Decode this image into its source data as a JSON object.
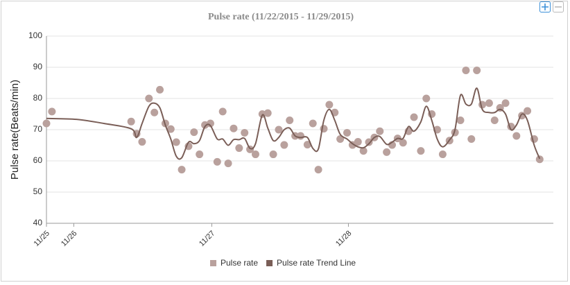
{
  "chart_data": {
    "type": "scatter",
    "title": "Pulse rate (11/22/2015 - 11/29/2015)",
    "y_label": "Pulse rate(Beats/min)",
    "xlim": [
      25.79,
      29.5
    ],
    "xticks": [
      {
        "value": 25.79,
        "label": "11/25"
      },
      {
        "value": 25.99,
        "label": "11/26"
      },
      {
        "value": 27,
        "label": "11/27"
      },
      {
        "value": 28,
        "label": "11/28"
      }
    ],
    "ylim": [
      40,
      100
    ],
    "yticks": [
      40,
      50,
      60,
      70,
      80,
      90,
      100
    ],
    "grid": true,
    "legend": "bottom",
    "series": [
      {
        "name": "Pulse rate",
        "type": "scatter",
        "color": "#b9a19d",
        "x": [
          25.79,
          25.83,
          26.41,
          26.45,
          26.49,
          26.54,
          26.58,
          26.62,
          26.66,
          26.7,
          26.74,
          26.78,
          26.83,
          26.87,
          26.91,
          26.95,
          26.99,
          27.04,
          27.08,
          27.12,
          27.16,
          27.2,
          27.24,
          27.28,
          27.32,
          27.37,
          27.41,
          27.45,
          27.49,
          27.53,
          27.57,
          27.61,
          27.65,
          27.7,
          27.74,
          27.78,
          27.82,
          27.86,
          27.9,
          27.94,
          27.99,
          28.03,
          28.07,
          28.11,
          28.15,
          28.19,
          28.23,
          28.28,
          28.32,
          28.36,
          28.4,
          28.44,
          28.48,
          28.53,
          28.57,
          28.61,
          28.65,
          28.69,
          28.74,
          28.78,
          28.82,
          28.86,
          28.9,
          28.94,
          28.98,
          29.03,
          29.07,
          29.11,
          29.15,
          29.19,
          29.23,
          29.27,
          29.31,
          29.36,
          29.4
        ],
        "values": [
          72,
          75.8,
          72.6,
          68.7,
          66.1,
          80,
          75.5,
          82.8,
          72,
          70.2,
          66,
          57.2,
          64.7,
          69.2,
          62.1,
          71.5,
          72,
          59.7,
          75.8,
          59.2,
          70.4,
          64.1,
          69,
          63.7,
          62.1,
          75,
          75.3,
          62.1,
          70,
          65.1,
          73,
          68,
          68,
          65.2,
          72,
          57.2,
          70.3,
          78,
          75.5,
          67,
          69,
          65.1,
          66.1,
          63.2,
          66,
          67.5,
          69.5,
          62.8,
          65.1,
          67.2,
          65.8,
          69.5,
          74,
          63.2,
          80,
          75,
          70,
          62.1,
          66.5,
          69.1,
          73,
          89,
          67,
          89,
          78,
          78.5,
          73,
          77,
          78.5,
          71,
          68,
          74.5,
          76,
          67,
          60.5
        ]
      },
      {
        "name": "Pulse rate Trend Line",
        "type": "line",
        "color": "#7a5e57",
        "x": [
          25.79,
          26.01,
          26.21,
          26.41,
          26.45,
          26.49,
          26.54,
          26.58,
          26.62,
          26.66,
          26.7,
          26.74,
          26.78,
          26.83,
          26.87,
          26.91,
          26.95,
          26.99,
          27.04,
          27.08,
          27.12,
          27.16,
          27.2,
          27.24,
          27.28,
          27.32,
          27.37,
          27.41,
          27.45,
          27.49,
          27.53,
          27.57,
          27.61,
          27.65,
          27.7,
          27.74,
          27.78,
          27.82,
          27.86,
          27.9,
          27.94,
          27.99,
          28.03,
          28.07,
          28.11,
          28.15,
          28.19,
          28.23,
          28.28,
          28.32,
          28.36,
          28.4,
          28.44,
          28.48,
          28.53,
          28.57,
          28.61,
          28.65,
          28.69,
          28.74,
          28.78,
          28.82,
          28.86,
          28.9,
          28.94,
          28.98,
          29.03,
          29.07,
          29.11,
          29.15,
          29.19,
          29.23,
          29.27,
          29.31,
          29.36,
          29.4
        ],
        "values": [
          73.6,
          73.3,
          72,
          70.3,
          67.5,
          72,
          77.5,
          78.5,
          77,
          71.5,
          67,
          61.5,
          61,
          66,
          65.5,
          66.5,
          71,
          71.3,
          67,
          67,
          65,
          66.8,
          66.8,
          67.2,
          64,
          65.5,
          74.7,
          70.5,
          66.5,
          67.5,
          70,
          70.5,
          68,
          67.5,
          67.5,
          64,
          63.8,
          73,
          76.5,
          73,
          68.5,
          67,
          65.5,
          64.5,
          64.2,
          65.5,
          67.5,
          67.8,
          65.3,
          66,
          67.2,
          67.2,
          71,
          69.5,
          72.5,
          77.5,
          73,
          67,
          64.5,
          66.7,
          70,
          81,
          78.2,
          78.2,
          83.3,
          76.5,
          75.5,
          75.5,
          76.5,
          75,
          70,
          71.5,
          75,
          73,
          65,
          60.7
        ]
      }
    ]
  }
}
